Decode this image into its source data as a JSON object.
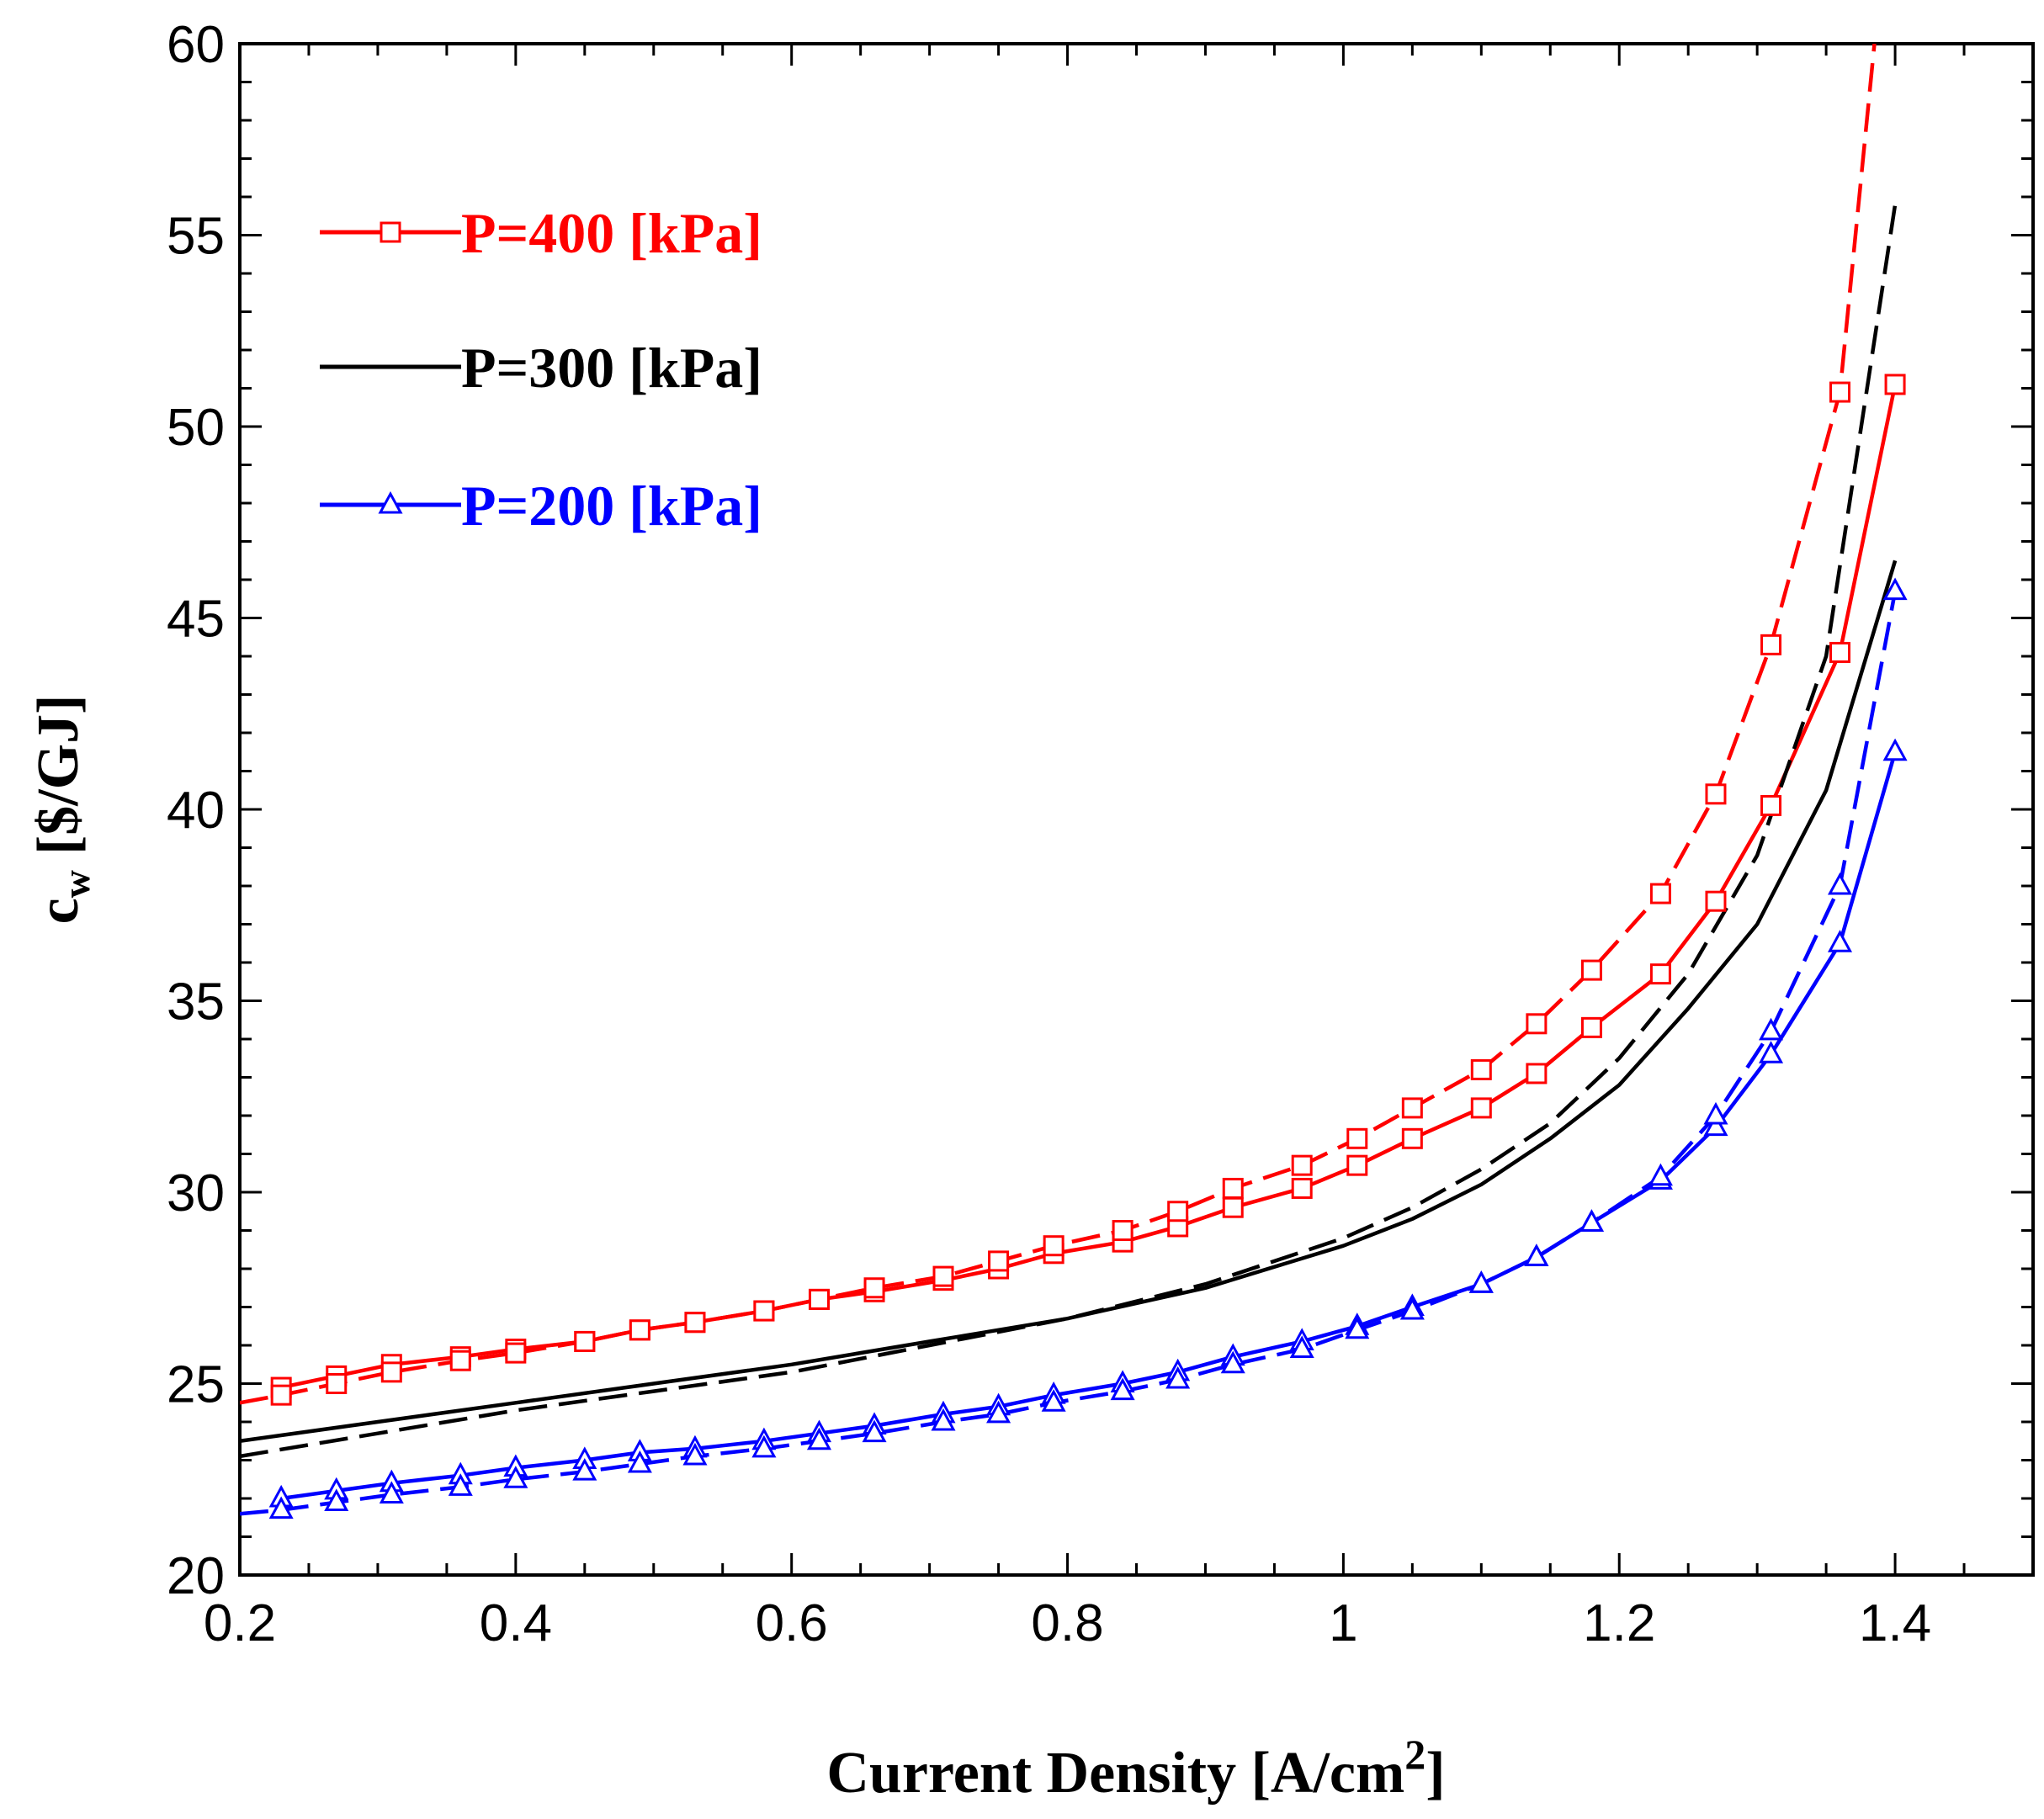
{
  "chart_data": {
    "type": "line",
    "title": "",
    "xlabel": "Current Density [A/cm",
    "xlabel_sup": "2",
    "xlabel_close": "]",
    "ylabel": "c",
    "ylabel_sub": "w",
    "ylabel_unit": "[$/GJ]",
    "xlim": [
      0.2,
      1.5
    ],
    "ylim": [
      20,
      60
    ],
    "x_ticks": [
      "0.2",
      "0.4",
      "0.6",
      "0.8",
      "1",
      "1.2",
      "1.4"
    ],
    "y_ticks": [
      "20",
      "25",
      "30",
      "35",
      "40",
      "45",
      "50",
      "55",
      "60"
    ],
    "grid": false,
    "legend_position": "top-left",
    "series": [
      {
        "name": "P=400 [kPa]",
        "color": "#ff0000",
        "marker": "square",
        "dash": "solid",
        "x": [
          0.23,
          0.27,
          0.31,
          0.36,
          0.4,
          0.45,
          0.49,
          0.53,
          0.58,
          0.62,
          0.66,
          0.71,
          0.75,
          0.79,
          0.84,
          0.88,
          0.92,
          0.97,
          1.01,
          1.05,
          1.1,
          1.14,
          1.18,
          1.23,
          1.27,
          1.31,
          1.36,
          1.4
        ],
        "y": [
          24.9,
          25.2,
          25.5,
          25.7,
          25.9,
          26.1,
          26.4,
          26.6,
          26.9,
          27.2,
          27.4,
          27.7,
          28.0,
          28.4,
          28.7,
          29.1,
          29.6,
          30.1,
          30.7,
          31.4,
          32.2,
          33.1,
          34.3,
          35.7,
          37.6,
          40.1,
          44.1,
          51.1
        ]
      },
      {
        "name": "P=400 [kPa] (dashed)",
        "color": "#ff0000",
        "marker": "square",
        "dash": "dashed",
        "x": [
          0.2,
          0.23,
          0.27,
          0.31,
          0.36,
          0.4,
          0.45,
          0.49,
          0.53,
          0.58,
          0.62,
          0.66,
          0.71,
          0.75,
          0.79,
          0.84,
          0.88,
          0.92,
          0.97,
          1.01,
          1.05,
          1.1,
          1.14,
          1.18,
          1.23,
          1.27,
          1.31,
          1.36,
          1.385
        ],
        "y": [
          24.5,
          24.7,
          25.0,
          25.3,
          25.6,
          25.8,
          26.1,
          26.4,
          26.6,
          26.9,
          27.2,
          27.5,
          27.8,
          28.2,
          28.6,
          29.0,
          29.5,
          30.1,
          30.7,
          31.4,
          32.2,
          33.2,
          34.4,
          35.8,
          37.8,
          40.4,
          44.3,
          50.9,
          60.0
        ]
      },
      {
        "name": "P=300 [kPa]",
        "color": "#000000",
        "marker": "none",
        "dash": "solid",
        "x": [
          0.2,
          0.3,
          0.4,
          0.5,
          0.6,
          0.7,
          0.8,
          0.9,
          1.0,
          1.05,
          1.1,
          1.15,
          1.2,
          1.25,
          1.3,
          1.35,
          1.4
        ],
        "y": [
          23.5,
          24.0,
          24.5,
          25.0,
          25.5,
          26.1,
          26.7,
          27.5,
          28.6,
          29.3,
          30.2,
          31.4,
          32.8,
          34.8,
          37.0,
          40.5,
          46.5
        ]
      },
      {
        "name": "P=300 [kPa] (dashed)",
        "color": "#000000",
        "marker": "none",
        "dash": "dashed",
        "x": [
          0.2,
          0.3,
          0.4,
          0.5,
          0.6,
          0.7,
          0.8,
          0.9,
          1.0,
          1.05,
          1.1,
          1.15,
          1.2,
          1.25,
          1.3,
          1.35,
          1.4
        ],
        "y": [
          23.1,
          23.7,
          24.3,
          24.8,
          25.3,
          26.0,
          26.7,
          27.6,
          28.8,
          29.6,
          30.6,
          31.8,
          33.5,
          35.7,
          38.8,
          44.0,
          55.8
        ]
      },
      {
        "name": "P=200 [kPa]",
        "color": "#0000ff",
        "marker": "triangle",
        "dash": "solid",
        "x": [
          0.23,
          0.27,
          0.31,
          0.36,
          0.4,
          0.45,
          0.49,
          0.53,
          0.58,
          0.62,
          0.66,
          0.71,
          0.75,
          0.79,
          0.84,
          0.88,
          0.92,
          0.97,
          1.01,
          1.05,
          1.1,
          1.14,
          1.18,
          1.23,
          1.27,
          1.31,
          1.36,
          1.4
        ],
        "y": [
          22.0,
          22.2,
          22.4,
          22.6,
          22.8,
          23.0,
          23.2,
          23.3,
          23.5,
          23.7,
          23.9,
          24.2,
          24.4,
          24.7,
          25.0,
          25.3,
          25.7,
          26.1,
          26.5,
          27.0,
          27.6,
          28.3,
          29.2,
          30.3,
          31.7,
          33.6,
          36.5,
          41.5
        ]
      },
      {
        "name": "P=200 [kPa] (dashed)",
        "color": "#0000ff",
        "marker": "triangle",
        "dash": "dashed",
        "x": [
          0.2,
          0.23,
          0.27,
          0.31,
          0.36,
          0.4,
          0.45,
          0.49,
          0.53,
          0.58,
          0.62,
          0.66,
          0.71,
          0.75,
          0.79,
          0.84,
          0.88,
          0.92,
          0.97,
          1.01,
          1.05,
          1.1,
          1.14,
          1.18,
          1.23,
          1.27,
          1.31,
          1.36,
          1.4
        ],
        "y": [
          21.6,
          21.7,
          21.9,
          22.1,
          22.3,
          22.5,
          22.7,
          22.9,
          23.1,
          23.3,
          23.5,
          23.7,
          24.0,
          24.2,
          24.5,
          24.8,
          25.1,
          25.5,
          25.9,
          26.4,
          26.9,
          27.6,
          28.3,
          29.2,
          30.4,
          32.0,
          34.2,
          38.0,
          45.7
        ]
      }
    ],
    "legend": [
      {
        "label": "P=400 [kPa]",
        "color": "#ff0000",
        "marker": "square"
      },
      {
        "label": "P=300 [kPa]",
        "color": "#000000",
        "marker": "none"
      },
      {
        "label": "P=200 [kPa]",
        "color": "#0000ff",
        "marker": "triangle"
      }
    ]
  }
}
